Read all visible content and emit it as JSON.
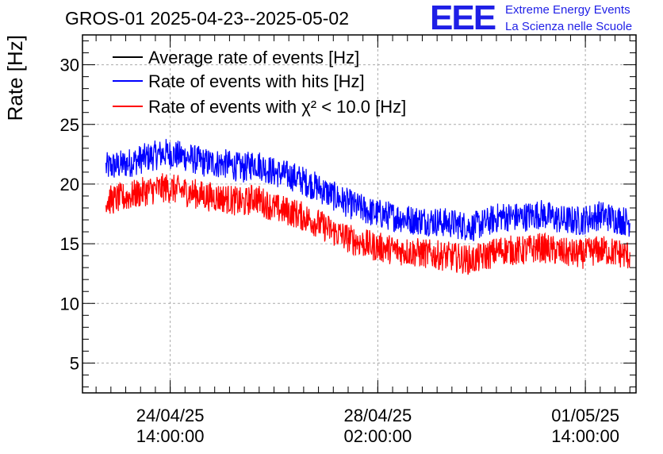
{
  "header": {
    "title": "GROS-01 2025-04-23--2025-05-02",
    "logo_text": "EEE",
    "logo_line1": "Extreme Energy Events",
    "logo_line2": "La Scienza nelle Scuole"
  },
  "colors": {
    "average": "#000000",
    "hits": "#0000ff",
    "chi2": "#ff0000",
    "logo": "#1f1fe6",
    "grid": "#aaaaaa"
  },
  "chart_data": {
    "type": "line",
    "title": "GROS-01 2025-04-23--2025-05-02",
    "ylabel": "Rate [Hz]",
    "xlabel": "",
    "ylim": [
      2.5,
      32.5
    ],
    "yticks": [
      5,
      10,
      15,
      20,
      25,
      30
    ],
    "xlim": [
      "2025-04-23T02:30:00",
      "2025-05-02T10:30:00"
    ],
    "xticks": [
      {
        "t": "2025-04-24T14:00:00",
        "label": [
          "24/04/25",
          "14:00:00"
        ]
      },
      {
        "t": "2025-04-28T02:00:00",
        "label": [
          "28/04/25",
          "02:00:00"
        ]
      },
      {
        "t": "2025-05-01T14:00:00",
        "label": [
          "01/05/25",
          "14:00:00"
        ]
      }
    ],
    "grid": true,
    "legend_position": "top-left",
    "noise_amplitude": 1.8,
    "series": [
      {
        "name": "Average rate of events [Hz]",
        "color": "#000000",
        "points": []
      },
      {
        "name": "Rate of events with hits [Hz]",
        "color": "#0000ff",
        "points": [
          [
            "2025-04-23T12:00:00",
            21.4
          ],
          [
            "2025-04-23T20:00:00",
            21.7
          ],
          [
            "2025-04-24T04:00:00",
            22.2
          ],
          [
            "2025-04-24T12:00:00",
            22.6
          ],
          [
            "2025-04-24T20:00:00",
            22.3
          ],
          [
            "2025-04-25T04:00:00",
            21.8
          ],
          [
            "2025-04-25T12:00:00",
            21.7
          ],
          [
            "2025-04-25T20:00:00",
            21.3
          ],
          [
            "2025-04-26T00:00:00",
            21.8
          ],
          [
            "2025-04-26T08:00:00",
            21.0
          ],
          [
            "2025-04-26T16:00:00",
            20.6
          ],
          [
            "2025-04-27T00:00:00",
            19.9
          ],
          [
            "2025-04-27T08:00:00",
            19.0
          ],
          [
            "2025-04-27T16:00:00",
            18.2
          ],
          [
            "2025-04-28T00:00:00",
            17.6
          ],
          [
            "2025-04-28T08:00:00",
            17.3
          ],
          [
            "2025-04-28T16:00:00",
            17.0
          ],
          [
            "2025-04-29T00:00:00",
            16.9
          ],
          [
            "2025-04-29T08:00:00",
            16.7
          ],
          [
            "2025-04-29T16:00:00",
            16.4
          ],
          [
            "2025-04-29T22:00:00",
            16.8
          ],
          [
            "2025-04-30T04:00:00",
            17.3
          ],
          [
            "2025-04-30T12:00:00",
            17.2
          ],
          [
            "2025-04-30T20:00:00",
            17.5
          ],
          [
            "2025-05-01T04:00:00",
            17.0
          ],
          [
            "2025-05-01T12:00:00",
            16.9
          ],
          [
            "2025-05-01T20:00:00",
            17.4
          ],
          [
            "2025-05-02T04:00:00",
            17.0
          ],
          [
            "2025-05-02T08:00:00",
            16.8
          ]
        ]
      },
      {
        "name": "Rate of events with χ² < 10.0 [Hz]",
        "color": "#ff0000",
        "points": [
          [
            "2025-04-23T12:00:00",
            18.6
          ],
          [
            "2025-04-23T20:00:00",
            18.9
          ],
          [
            "2025-04-24T04:00:00",
            19.4
          ],
          [
            "2025-04-24T12:00:00",
            19.7
          ],
          [
            "2025-04-24T20:00:00",
            19.4
          ],
          [
            "2025-04-25T04:00:00",
            19.0
          ],
          [
            "2025-04-25T12:00:00",
            18.8
          ],
          [
            "2025-04-25T20:00:00",
            18.4
          ],
          [
            "2025-04-26T00:00:00",
            18.9
          ],
          [
            "2025-04-26T08:00:00",
            18.0
          ],
          [
            "2025-04-26T16:00:00",
            17.6
          ],
          [
            "2025-04-27T00:00:00",
            16.9
          ],
          [
            "2025-04-27T08:00:00",
            16.0
          ],
          [
            "2025-04-27T16:00:00",
            15.3
          ],
          [
            "2025-04-28T00:00:00",
            14.8
          ],
          [
            "2025-04-28T08:00:00",
            14.5
          ],
          [
            "2025-04-28T16:00:00",
            14.3
          ],
          [
            "2025-04-29T00:00:00",
            14.1
          ],
          [
            "2025-04-29T08:00:00",
            13.9
          ],
          [
            "2025-04-29T16:00:00",
            13.6
          ],
          [
            "2025-04-29T22:00:00",
            14.0
          ],
          [
            "2025-04-30T04:00:00",
            14.5
          ],
          [
            "2025-04-30T12:00:00",
            14.4
          ],
          [
            "2025-04-30T20:00:00",
            14.7
          ],
          [
            "2025-05-01T04:00:00",
            14.3
          ],
          [
            "2025-05-01T12:00:00",
            14.1
          ],
          [
            "2025-05-01T20:00:00",
            14.5
          ],
          [
            "2025-05-02T04:00:00",
            14.2
          ],
          [
            "2025-05-02T08:00:00",
            14.0
          ]
        ]
      }
    ]
  }
}
